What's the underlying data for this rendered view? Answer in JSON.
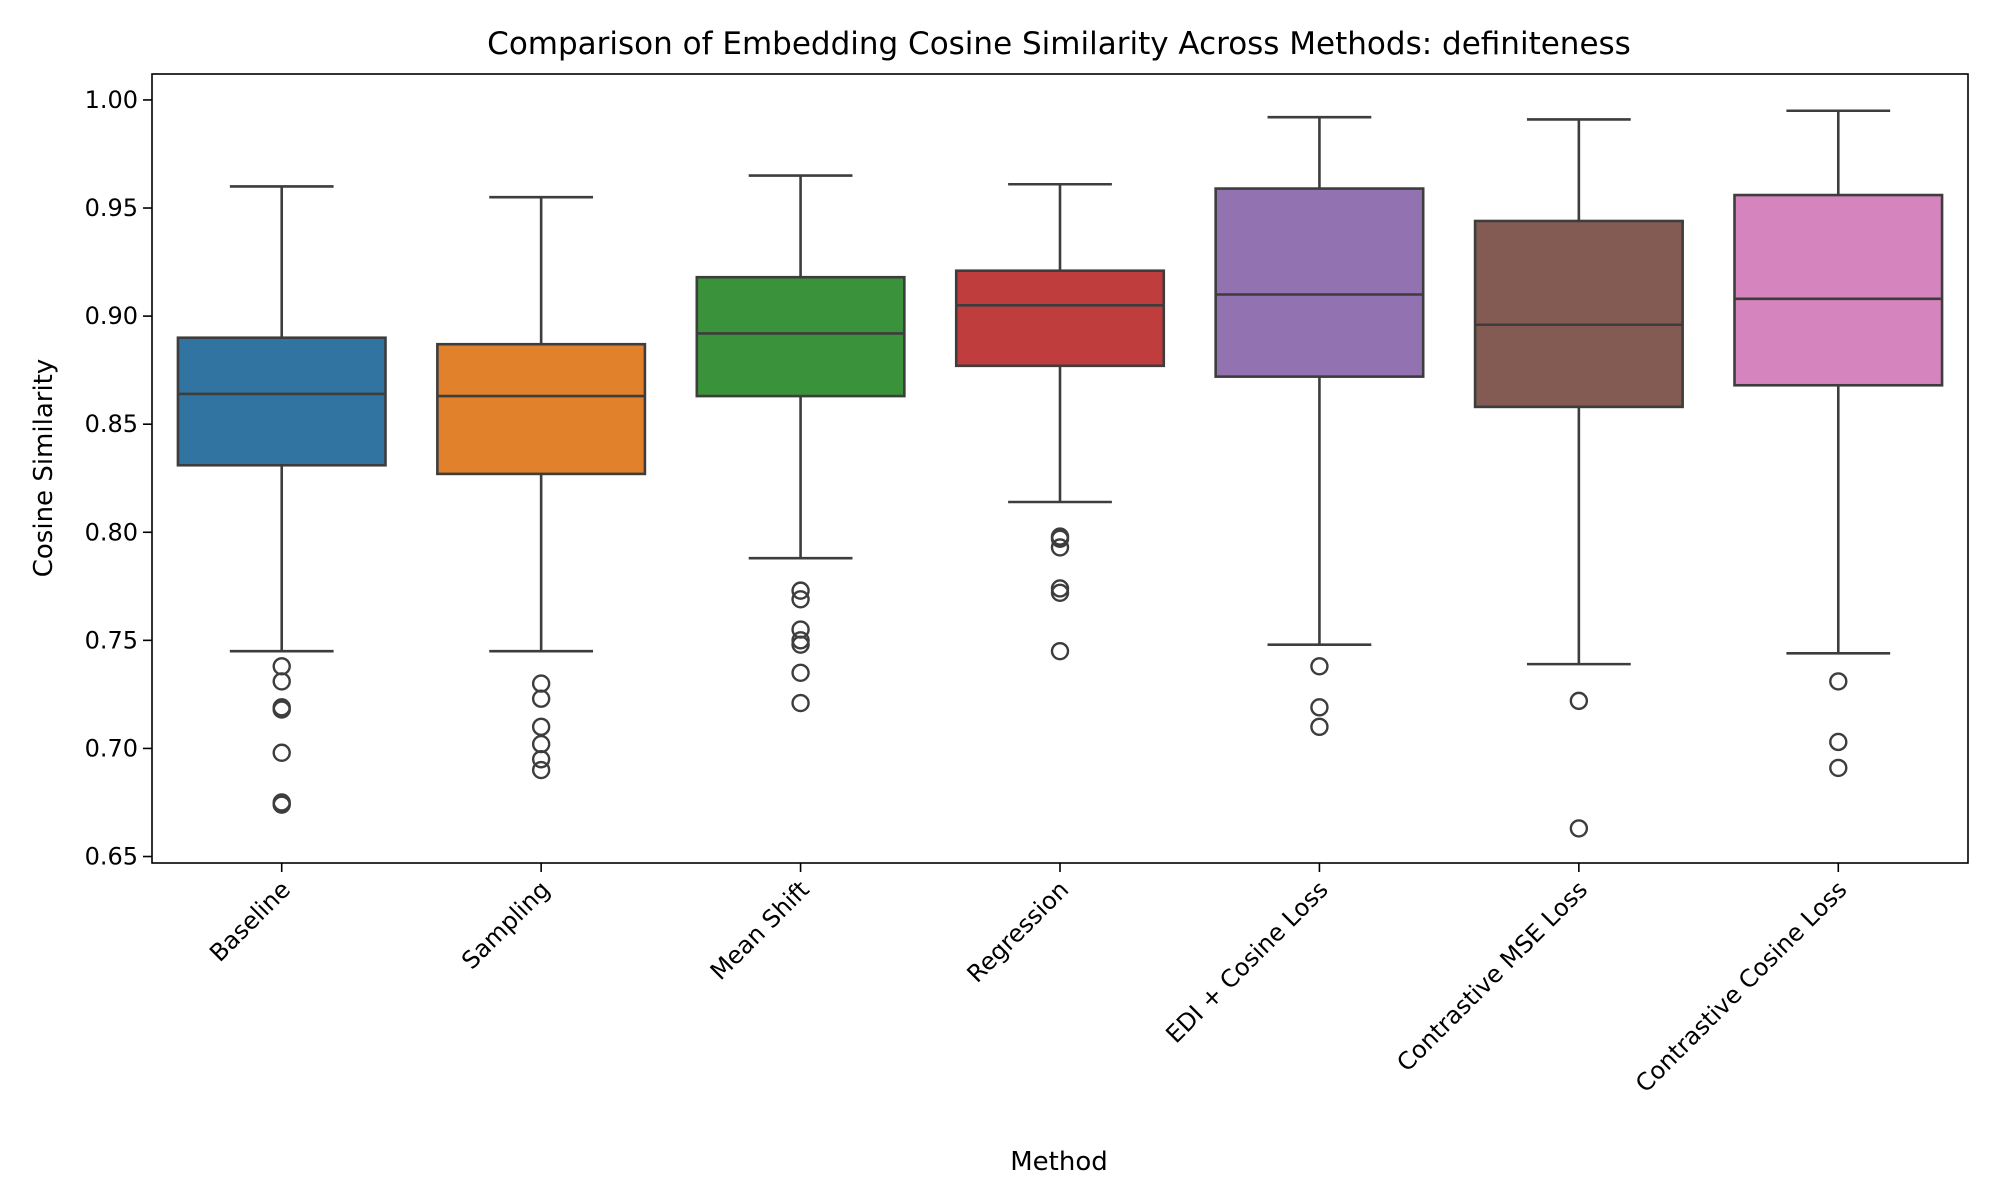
{
  "chart_data": {
    "type": "box",
    "title": "Comparison of Embedding Cosine Similarity Across Methods: definiteness",
    "xlabel": "Method",
    "ylabel": "Cosine Similarity",
    "ylim": [
      0.647,
      1.012
    ],
    "yticks": [
      0.65,
      0.7,
      0.75,
      0.8,
      0.85,
      0.9,
      0.95,
      1.0
    ],
    "ytick_labels": [
      "0.65",
      "0.70",
      "0.75",
      "0.80",
      "0.85",
      "0.90",
      "0.95",
      "1.00"
    ],
    "grid": false,
    "categories": [
      "Baseline",
      "Sampling",
      "Mean Shift",
      "Regression",
      "EDI + Cosine Loss",
      "Contrastive MSE Loss",
      "Contrastive Cosine Loss"
    ],
    "boxes": [
      {
        "category": "Baseline",
        "color": "#3274a1",
        "whislo": 0.745,
        "q1": 0.831,
        "median": 0.864,
        "q3": 0.89,
        "whishi": 0.96,
        "fliers": [
          0.738,
          0.731,
          0.719,
          0.718,
          0.698,
          0.675,
          0.674
        ]
      },
      {
        "category": "Sampling",
        "color": "#e1812c",
        "whislo": 0.745,
        "q1": 0.827,
        "median": 0.863,
        "q3": 0.887,
        "whishi": 0.955,
        "fliers": [
          0.73,
          0.723,
          0.71,
          0.702,
          0.695,
          0.69
        ]
      },
      {
        "category": "Mean Shift",
        "color": "#3a923a",
        "whislo": 0.788,
        "q1": 0.863,
        "median": 0.892,
        "q3": 0.918,
        "whishi": 0.965,
        "fliers": [
          0.773,
          0.769,
          0.755,
          0.75,
          0.748,
          0.735,
          0.721
        ]
      },
      {
        "category": "Regression",
        "color": "#c03d3e",
        "whislo": 0.814,
        "q1": 0.877,
        "median": 0.905,
        "q3": 0.921,
        "whishi": 0.961,
        "fliers": [
          0.798,
          0.797,
          0.793,
          0.774,
          0.772,
          0.745
        ]
      },
      {
        "category": "EDI + Cosine Loss",
        "color": "#9372b2",
        "whislo": 0.748,
        "q1": 0.872,
        "median": 0.91,
        "q3": 0.959,
        "whishi": 0.992,
        "fliers": [
          0.738,
          0.719,
          0.71
        ]
      },
      {
        "category": "Contrastive MSE Loss",
        "color": "#845b53",
        "whislo": 0.739,
        "q1": 0.858,
        "median": 0.896,
        "q3": 0.944,
        "whishi": 0.991,
        "fliers": [
          0.722,
          0.663
        ]
      },
      {
        "category": "Contrastive Cosine Loss",
        "color": "#d684bd",
        "whislo": 0.744,
        "q1": 0.868,
        "median": 0.908,
        "q3": 0.956,
        "whishi": 0.995,
        "fliers": [
          0.731,
          0.703,
          0.691
        ]
      }
    ]
  }
}
